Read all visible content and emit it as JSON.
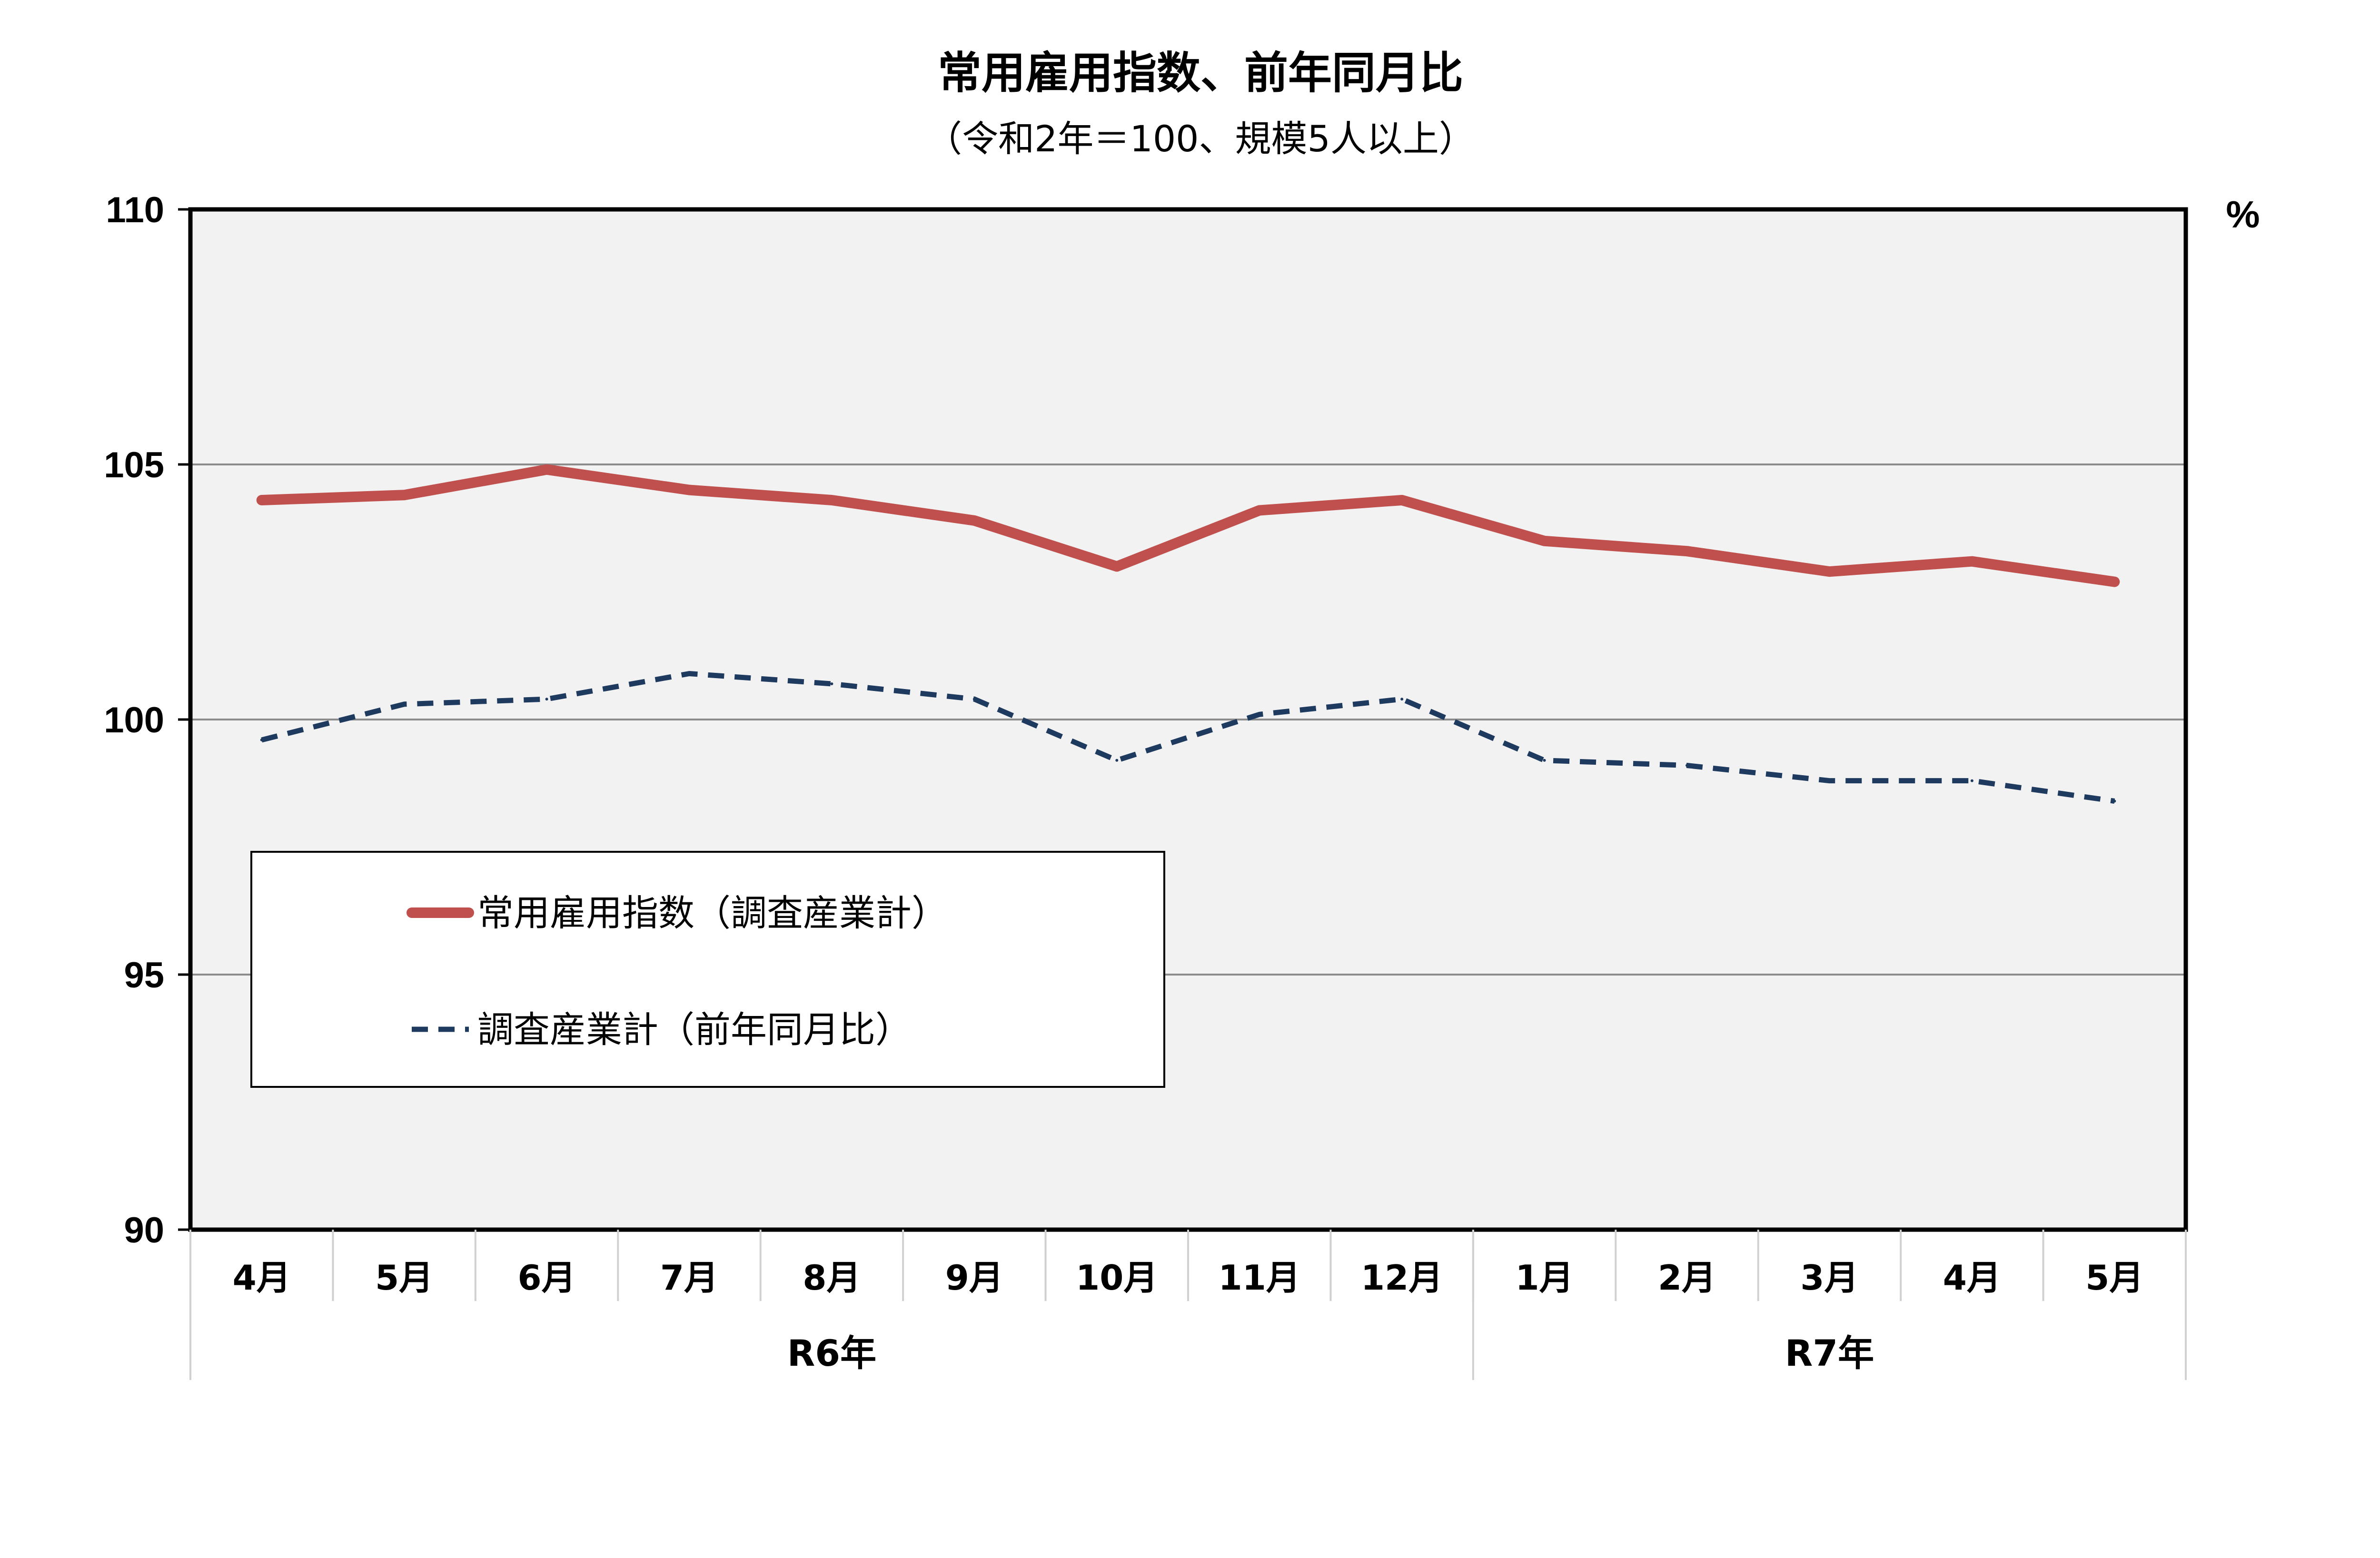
{
  "chart_data": {
    "type": "line",
    "title": "常用雇用指数、前年同月比",
    "subtitle": "（令和2年＝100、規模5人以上）",
    "y_unit": "%",
    "ylim": [
      90,
      110
    ],
    "yticks": [
      "110",
      "105",
      "100",
      "95",
      "90"
    ],
    "categories": [
      "4月",
      "5月",
      "6月",
      "7月",
      "8月",
      "9月",
      "10月",
      "11月",
      "12月",
      "1月",
      "2月",
      "3月",
      "4月",
      "5月"
    ],
    "groups": [
      {
        "label": "R6年",
        "count": 9
      },
      {
        "label": "R7年",
        "count": 5
      }
    ],
    "grid": true,
    "legend_position": "lower-left",
    "series": [
      {
        "name": "常用雇用指数（調査産業計）",
        "color": "#c0504d",
        "style": "solid",
        "values": [
          104.3,
          104.4,
          104.9,
          104.5,
          104.3,
          103.9,
          103.0,
          104.1,
          104.3,
          103.5,
          103.3,
          102.9,
          103.1,
          102.7
        ]
      },
      {
        "name": "調査産業計（前年同月比）",
        "color": "#1f3a5f",
        "style": "dashed",
        "values": [
          99.6,
          100.3,
          100.4,
          100.9,
          100.7,
          100.4,
          99.2,
          100.1,
          100.4,
          99.2,
          99.1,
          98.8,
          98.8,
          98.4
        ]
      }
    ]
  }
}
